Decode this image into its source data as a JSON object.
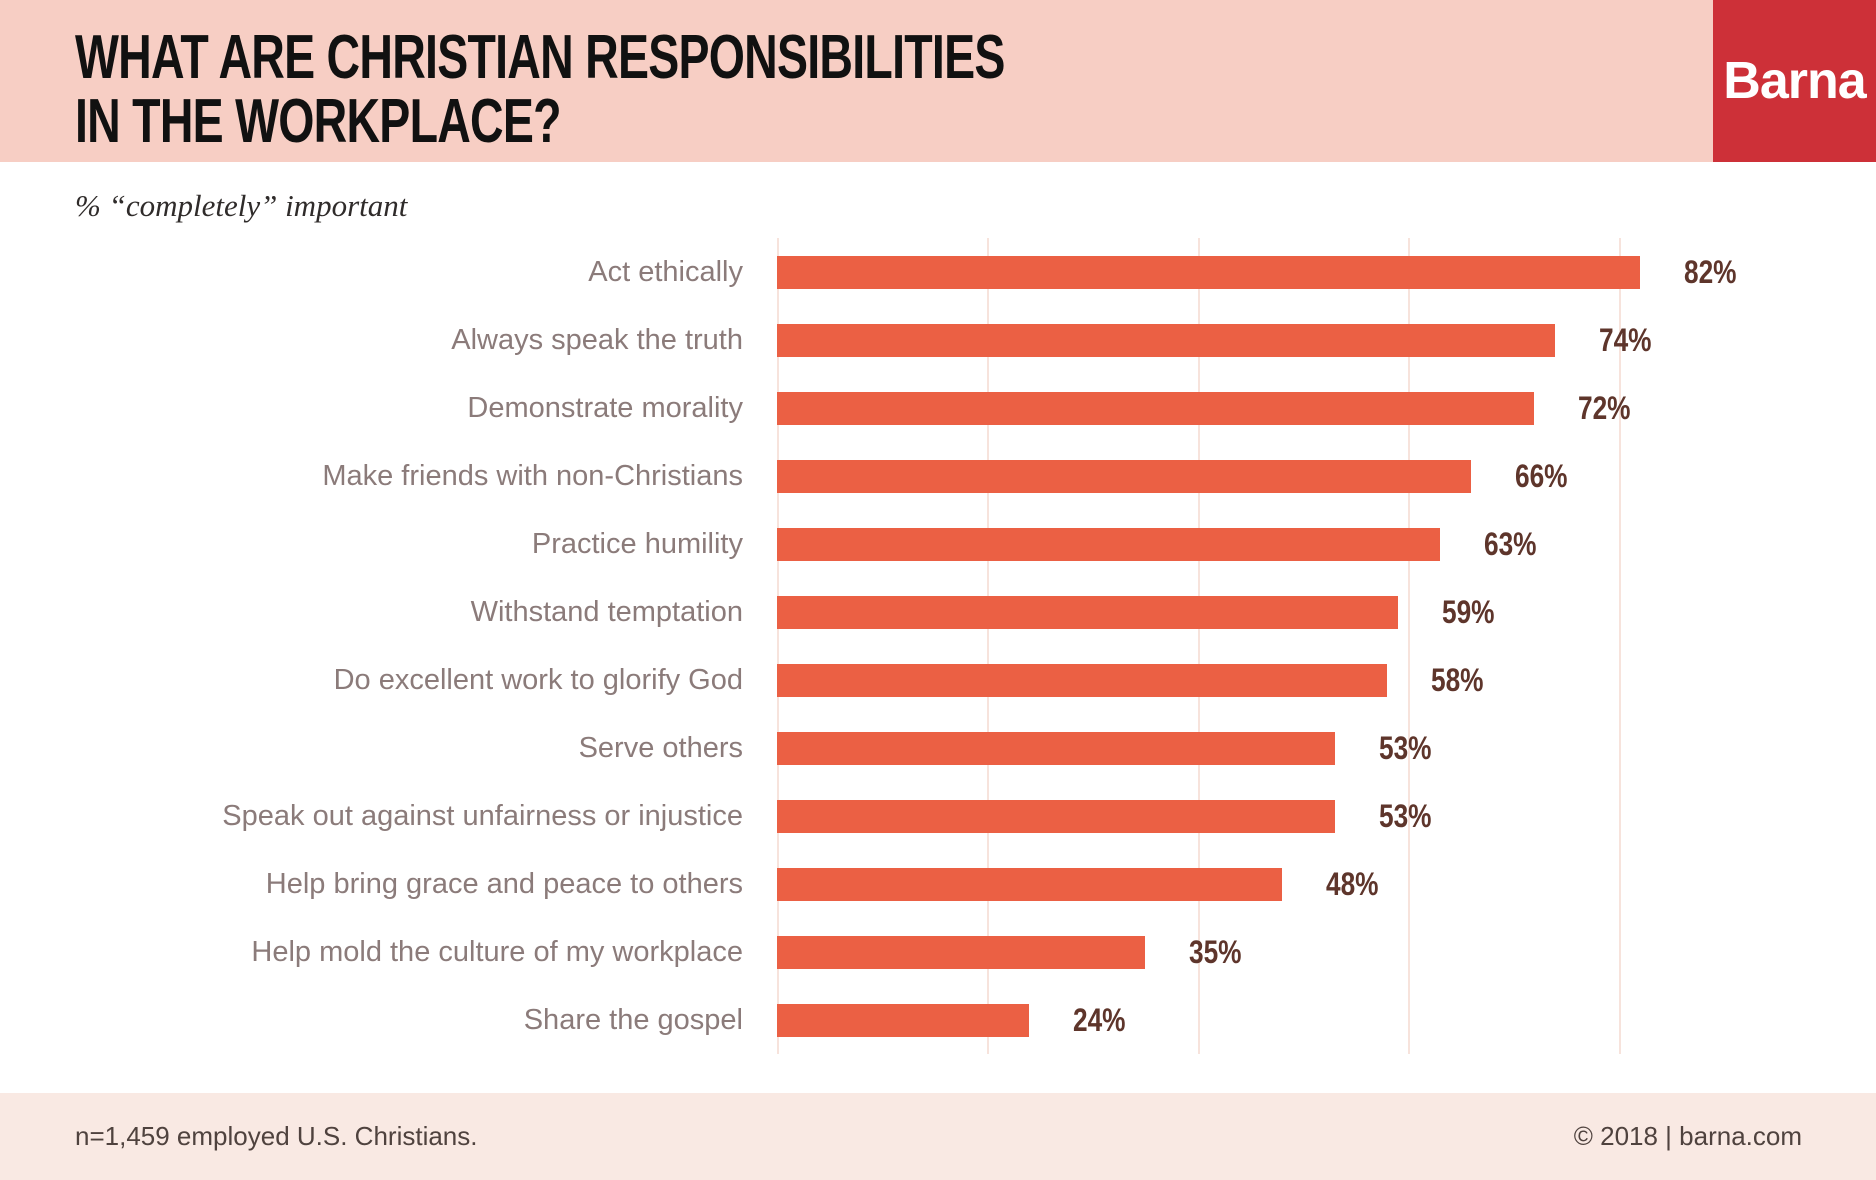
{
  "header": {
    "title_line1": "WHAT ARE CHRISTIAN RESPONSIBILITIES",
    "title_line2": "IN THE WORKPLACE?",
    "logo_text": "Barna"
  },
  "subtitle": {
    "text": "% “completely” important"
  },
  "chart_data": {
    "type": "bar",
    "orientation": "horizontal",
    "title": "WHAT ARE CHRISTIAN RESPONSIBILITIES IN THE WORKPLACE?",
    "subtitle": "% “completely” important",
    "unit": "%",
    "categories": [
      "Act ethically",
      "Always speak the truth",
      "Demonstrate morality",
      "Make friends with non-Christians",
      "Practice humility",
      "Withstand temptation",
      "Do excellent work to glorify God",
      "Serve others",
      "Speak out against unfairness or injustice",
      "Help bring grace and peace to others",
      "Help mold the culture of my workplace",
      "Share the gospel"
    ],
    "values": [
      82,
      74,
      72,
      66,
      63,
      59,
      58,
      53,
      53,
      48,
      35,
      24
    ],
    "value_labels": [
      "82%",
      "74%",
      "72%",
      "66%",
      "63%",
      "59%",
      "58%",
      "53%",
      "53%",
      "48%",
      "35%",
      "24%"
    ],
    "xlim": [
      0,
      100
    ],
    "gridlines_pct": [
      0,
      20,
      40,
      60,
      80
    ],
    "grid_on": true,
    "legend": "none",
    "bar_color": "#eb6044",
    "value_label_color": "#5e352b"
  },
  "footer": {
    "sample_note": "n=1,459 employed U.S. Christians.",
    "copyright": "© 2018 | barna.com"
  },
  "colors": {
    "header_bg": "#f7cec4",
    "logo_bg": "#cd3038",
    "footer_bg": "#f9e9e3",
    "bar": "#eb6044",
    "grid": "#f7e3dc",
    "label": "#8b7b7a",
    "value": "#5e352b"
  }
}
